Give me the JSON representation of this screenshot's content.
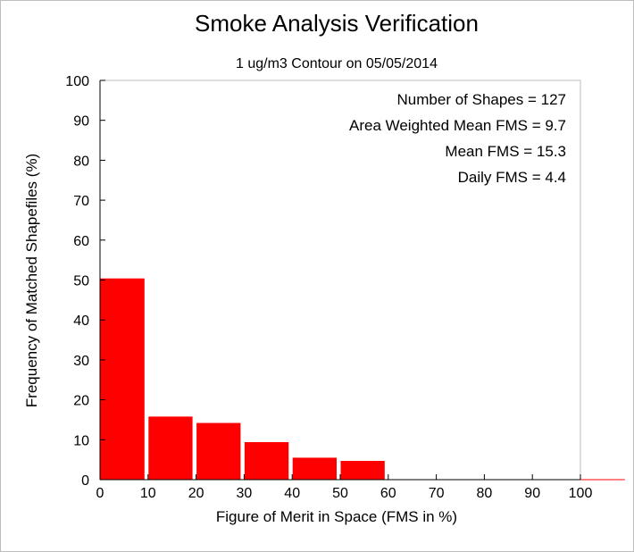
{
  "chart_data": {
    "type": "bar",
    "title": "Smoke Analysis Verification",
    "subtitle": "1 ug/m3 Contour on 05/05/2014",
    "xlabel": "Figure of Merit in Space (FMS in %)",
    "ylabel": "Frequency of Matched Shapefiles (%)",
    "xlim": [
      0,
      110
    ],
    "ylim": [
      0,
      100
    ],
    "x_ticks": [
      "0",
      "10",
      "20",
      "30",
      "40",
      "50",
      "60",
      "70",
      "80",
      "90",
      "100"
    ],
    "y_ticks": [
      "0",
      "10",
      "20",
      "30",
      "40",
      "50",
      "60",
      "70",
      "80",
      "90",
      "100"
    ],
    "bins": [
      {
        "start": 0,
        "end": 10,
        "value": 50.4
      },
      {
        "start": 10,
        "end": 20,
        "value": 15.8
      },
      {
        "start": 20,
        "end": 30,
        "value": 14.2
      },
      {
        "start": 30,
        "end": 40,
        "value": 9.4
      },
      {
        "start": 40,
        "end": 50,
        "value": 5.5
      },
      {
        "start": 50,
        "end": 60,
        "value": 4.7
      },
      {
        "start": 60,
        "end": 70,
        "value": 0
      },
      {
        "start": 70,
        "end": 80,
        "value": 0
      },
      {
        "start": 80,
        "end": 90,
        "value": 0
      },
      {
        "start": 90,
        "end": 100,
        "value": 0
      },
      {
        "start": 100,
        "end": 110,
        "value": 0
      }
    ],
    "annotations": [
      "Number of Shapes = 127",
      "Area Weighted Mean FMS = 9.7",
      "Mean FMS = 15.3",
      "Daily FMS = 4.4"
    ],
    "bar_color": "#ff0000",
    "grid": false
  }
}
